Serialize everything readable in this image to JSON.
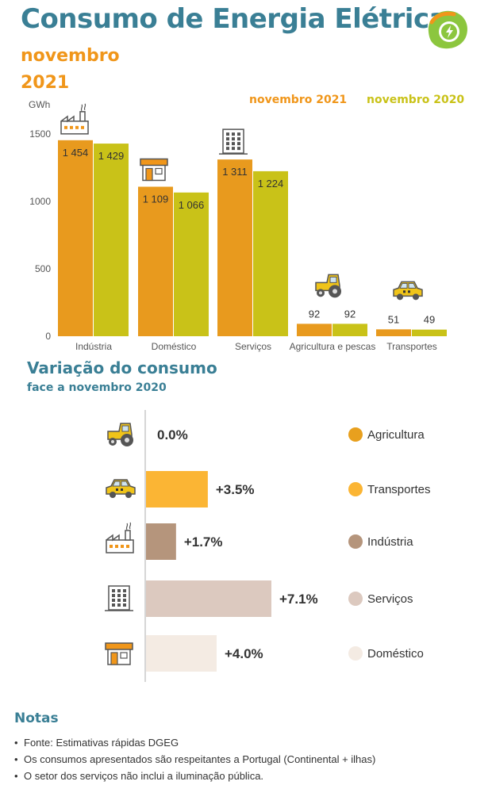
{
  "header": {
    "title": "Consumo de Energia Elétrica",
    "month": "novembro",
    "year": "2021"
  },
  "colors": {
    "title": "#3a7f95",
    "series_2021": "#e89a1e",
    "series_2020": "#c9c218",
    "agricultura": "#e8a01e",
    "transportes": "#fbb534",
    "industria": "#b5957c",
    "servicos": "#dcc9bf",
    "domestico": "#f4ebe3"
  },
  "chart_data": [
    {
      "type": "bar",
      "title": "Consumo de Energia Elétrica",
      "ylabel": "GWh",
      "xlabel": "",
      "ylim": [
        0,
        1500
      ],
      "yticks": [
        0,
        500,
        1000,
        1500
      ],
      "categories": [
        "Indústria",
        "Doméstico",
        "Serviços",
        "Agricultura e pescas",
        "Transportes"
      ],
      "series": [
        {
          "name": "novembro 2021",
          "values": [
            1454,
            1109,
            1311,
            92,
            51
          ],
          "labels": [
            "1 454",
            "1 109",
            "1 311",
            "92",
            "51"
          ]
        },
        {
          "name": "novembro 2020",
          "values": [
            1429,
            1066,
            1224,
            92,
            49
          ],
          "labels": [
            "1 429",
            "1 066",
            "1 224",
            "92",
            "49"
          ]
        }
      ],
      "grid": false,
      "legend": "top-right"
    },
    {
      "type": "bar",
      "orientation": "horizontal",
      "title": "Variação do consumo",
      "subtitle": "face a novembro 2020",
      "categories": [
        "Agricultura",
        "Transportes",
        "Indústria",
        "Serviços",
        "Doméstico"
      ],
      "values": [
        0.0,
        3.5,
        1.7,
        7.1,
        4.0
      ],
      "labels": [
        "0.0%",
        "+3.5%",
        "+1.7%",
        "+7.1%",
        "+4.0%"
      ],
      "unit": "%",
      "xlim": [
        0,
        7.1
      ],
      "legend": "right"
    }
  ],
  "notes": {
    "title": "Notas",
    "items": [
      "Fonte: Estimativas rápidas DGEG",
      "Os consumos apresentados são respeitantes a Portugal (Continental + ilhas)",
      "O setor dos serviços não inclui a iluminação pública."
    ]
  }
}
